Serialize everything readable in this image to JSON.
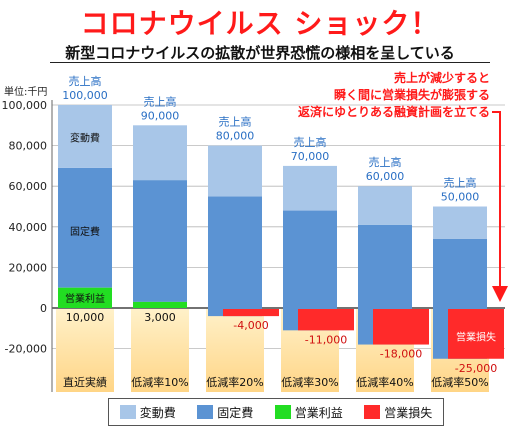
{
  "headline": "コロナウイルス ショック！",
  "subheadline": "新型コロナウイルスの拡散が世界恐慌の様相を呈している",
  "colors": {
    "variable_cost": "#a8c6e8",
    "fixed_cost": "#5b93d3",
    "operating_profit": "#22dd22",
    "operating_loss": "#ff2a2a",
    "accent_text": "#ff1a1a",
    "sales_label": "#2a6fc4"
  },
  "chart_data": {
    "type": "bar",
    "unit_label": "単位:千円",
    "ylim": [
      -25000,
      100000
    ],
    "yticks": [
      -20000,
      0,
      20000,
      40000,
      60000,
      80000,
      100000
    ],
    "ytick_labels": [
      "-20,000",
      "0",
      "20,000",
      "40,000",
      "60,000",
      "80,000",
      "100,000"
    ],
    "grid": true,
    "categories": [
      "直近実績",
      "低減率10%",
      "低減率20%",
      "低減率30%",
      "低減率40%",
      "低減率50%"
    ],
    "sales_caption": "売上高",
    "sales": [
      100000,
      90000,
      80000,
      70000,
      60000,
      50000
    ],
    "sales_labels": [
      "100,000",
      "90,000",
      "80,000",
      "70,000",
      "60,000",
      "50,000"
    ],
    "series": [
      {
        "name": "変動費",
        "values": [
          31000,
          27000,
          25000,
          22000,
          19000,
          16000
        ]
      },
      {
        "name": "固定費",
        "values": [
          59000,
          59000,
          59000,
          59000,
          59000,
          59000
        ]
      },
      {
        "name": "営業利益",
        "values": [
          10000,
          3000,
          0,
          0,
          0,
          0
        ]
      },
      {
        "name": "営業損失",
        "values": [
          0,
          0,
          -4000,
          -11000,
          -18000,
          -25000
        ]
      }
    ],
    "result_labels": [
      "10,000",
      "3,000",
      "-4,000",
      "-11,000",
      "-18,000",
      "-25,000"
    ],
    "segment_labels": {
      "variable_cost": "変動費",
      "fixed_cost": "固定費",
      "operating_profit": "営業利益",
      "operating_loss": "営業損失"
    },
    "annotation": [
      "売上が減少すると",
      "瞬く間に営業損失が膨張する",
      "返済にゆとりある融資計画を立てる"
    ],
    "legend": {
      "position": "bottom",
      "items": [
        "変動費",
        "固定費",
        "営業利益",
        "営業損失"
      ]
    }
  }
}
